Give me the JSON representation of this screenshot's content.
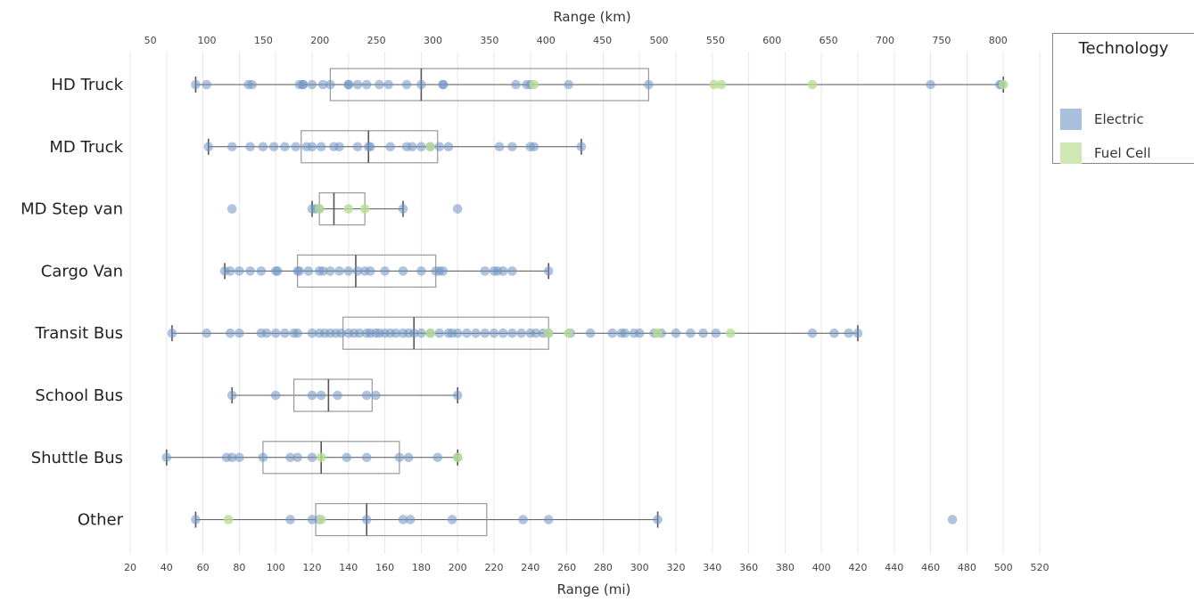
{
  "chart_data": {
    "type": "box-strip",
    "x_bottom_label": "Range (mi)",
    "x_top_label": "Range (km)",
    "xlim_mi": [
      20,
      520
    ],
    "x_ticks_mi": [
      20,
      40,
      60,
      80,
      100,
      120,
      140,
      160,
      180,
      200,
      220,
      240,
      260,
      280,
      300,
      320,
      340,
      360,
      380,
      400,
      420,
      440,
      460,
      480,
      500,
      520
    ],
    "x_ticks_km": [
      50,
      100,
      150,
      200,
      250,
      300,
      350,
      400,
      450,
      500,
      550,
      600,
      650,
      700,
      750,
      800
    ],
    "grid": "vertical",
    "legend": {
      "title": "Technology",
      "position": "top-right",
      "items": [
        {
          "label": "Electric",
          "color": "#a9c0dc"
        },
        {
          "label": "Fuel Cell",
          "color": "#cfe7b3"
        }
      ]
    },
    "colors": {
      "electric_point": "#6f93c3",
      "fuel_cell_point": "#b9dd93",
      "box_stroke": "#555555"
    },
    "categories": [
      {
        "name": "HD Truck",
        "box": {
          "whisker_low": 56,
          "q1": 130,
          "median": 180,
          "q3": 305,
          "whisker_high": 500
        },
        "electric": [
          56,
          62,
          85,
          87,
          113,
          115,
          115,
          120,
          126,
          130,
          140,
          140,
          145,
          150,
          157,
          162,
          172,
          180,
          192,
          192,
          232,
          238,
          240,
          261,
          305,
          460,
          498,
          499
        ],
        "fuel_cell": [
          242,
          341,
          345,
          395,
          500
        ]
      },
      {
        "name": "MD Truck",
        "box": {
          "whisker_low": 63,
          "q1": 114,
          "median": 151,
          "q3": 189,
          "whisker_high": 268
        },
        "electric": [
          63,
          76,
          86,
          93,
          99,
          105,
          111,
          117,
          120,
          125,
          132,
          135,
          145,
          151,
          152,
          163,
          172,
          175,
          180,
          185,
          190,
          195,
          223,
          230,
          240,
          242,
          268
        ],
        "fuel_cell": [
          185
        ]
      },
      {
        "name": "MD Step van",
        "box": {
          "whisker_low": 120,
          "q1": 124,
          "median": 132,
          "q3": 149,
          "whisker_high": 170
        },
        "electric": [
          76,
          120,
          122,
          124,
          170,
          200
        ],
        "fuel_cell": [
          124,
          140,
          149
        ]
      },
      {
        "name": "Cargo Van",
        "box": {
          "whisker_low": 72,
          "q1": 112,
          "median": 144,
          "q3": 188,
          "whisker_high": 250
        },
        "electric": [
          72,
          75,
          80,
          86,
          92,
          100,
          101,
          112,
          113,
          118,
          124,
          126,
          130,
          135,
          140,
          145,
          149,
          152,
          160,
          170,
          180,
          188,
          190,
          192,
          215,
          220,
          222,
          225,
          230,
          250
        ],
        "fuel_cell": []
      },
      {
        "name": "Transit Bus",
        "box": {
          "whisker_low": 43,
          "q1": 137,
          "median": 176,
          "q3": 250,
          "whisker_high": 420
        },
        "electric": [
          43,
          62,
          75,
          80,
          92,
          95,
          100,
          105,
          110,
          112,
          120,
          124,
          127,
          130,
          133,
          136,
          140,
          143,
          146,
          150,
          152,
          155,
          157,
          160,
          163,
          166,
          170,
          173,
          176,
          180,
          185,
          190,
          195,
          197,
          200,
          205,
          210,
          215,
          220,
          225,
          230,
          235,
          240,
          243,
          247,
          250,
          262,
          273,
          285,
          290,
          292,
          297,
          300,
          308,
          312,
          320,
          328,
          335,
          342,
          395,
          407,
          415,
          420
        ],
        "fuel_cell": [
          185,
          250,
          261,
          310,
          350
        ]
      },
      {
        "name": "School Bus",
        "box": {
          "whisker_low": 76,
          "q1": 110,
          "median": 129,
          "q3": 153,
          "whisker_high": 200
        },
        "electric": [
          76,
          100,
          120,
          125,
          134,
          150,
          155,
          200
        ],
        "fuel_cell": []
      },
      {
        "name": "Shuttle Bus",
        "box": {
          "whisker_low": 40,
          "q1": 93,
          "median": 125,
          "q3": 168,
          "whisker_high": 200
        },
        "electric": [
          40,
          73,
          76,
          80,
          93,
          108,
          112,
          120,
          139,
          150,
          168,
          173,
          189,
          200
        ],
        "fuel_cell": [
          125,
          200
        ]
      },
      {
        "name": "Other",
        "box": {
          "whisker_low": 56,
          "q1": 122,
          "median": 150,
          "q3": 216,
          "whisker_high": 310
        },
        "electric": [
          56,
          108,
          120,
          124,
          150,
          170,
          174,
          197,
          236,
          250,
          310,
          472
        ],
        "fuel_cell": [
          74,
          125
        ]
      }
    ]
  }
}
